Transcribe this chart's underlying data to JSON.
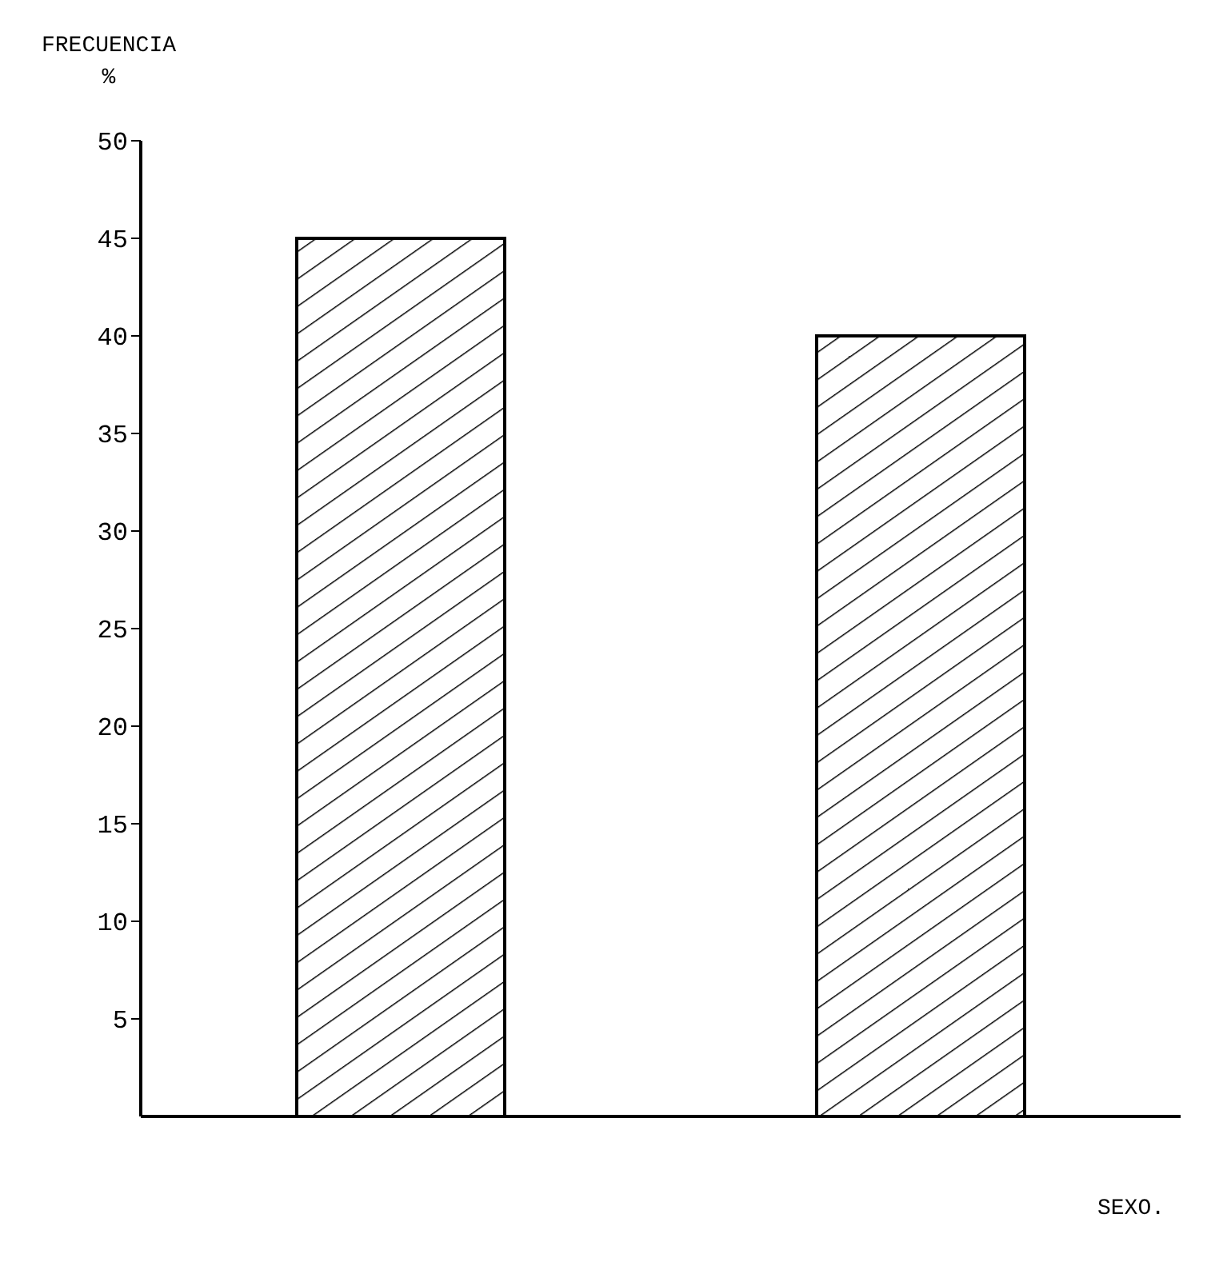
{
  "chart_data": {
    "type": "bar",
    "ylabel": "FRECUENCIA %",
    "xlabel": "SEXO.",
    "categories": [
      null,
      null
    ],
    "values": [
      45,
      40
    ],
    "color": "#000000",
    "ylim": [
      0,
      50
    ],
    "yticks": [
      5,
      10,
      15,
      20,
      25,
      30,
      35,
      40,
      45,
      50
    ]
  }
}
